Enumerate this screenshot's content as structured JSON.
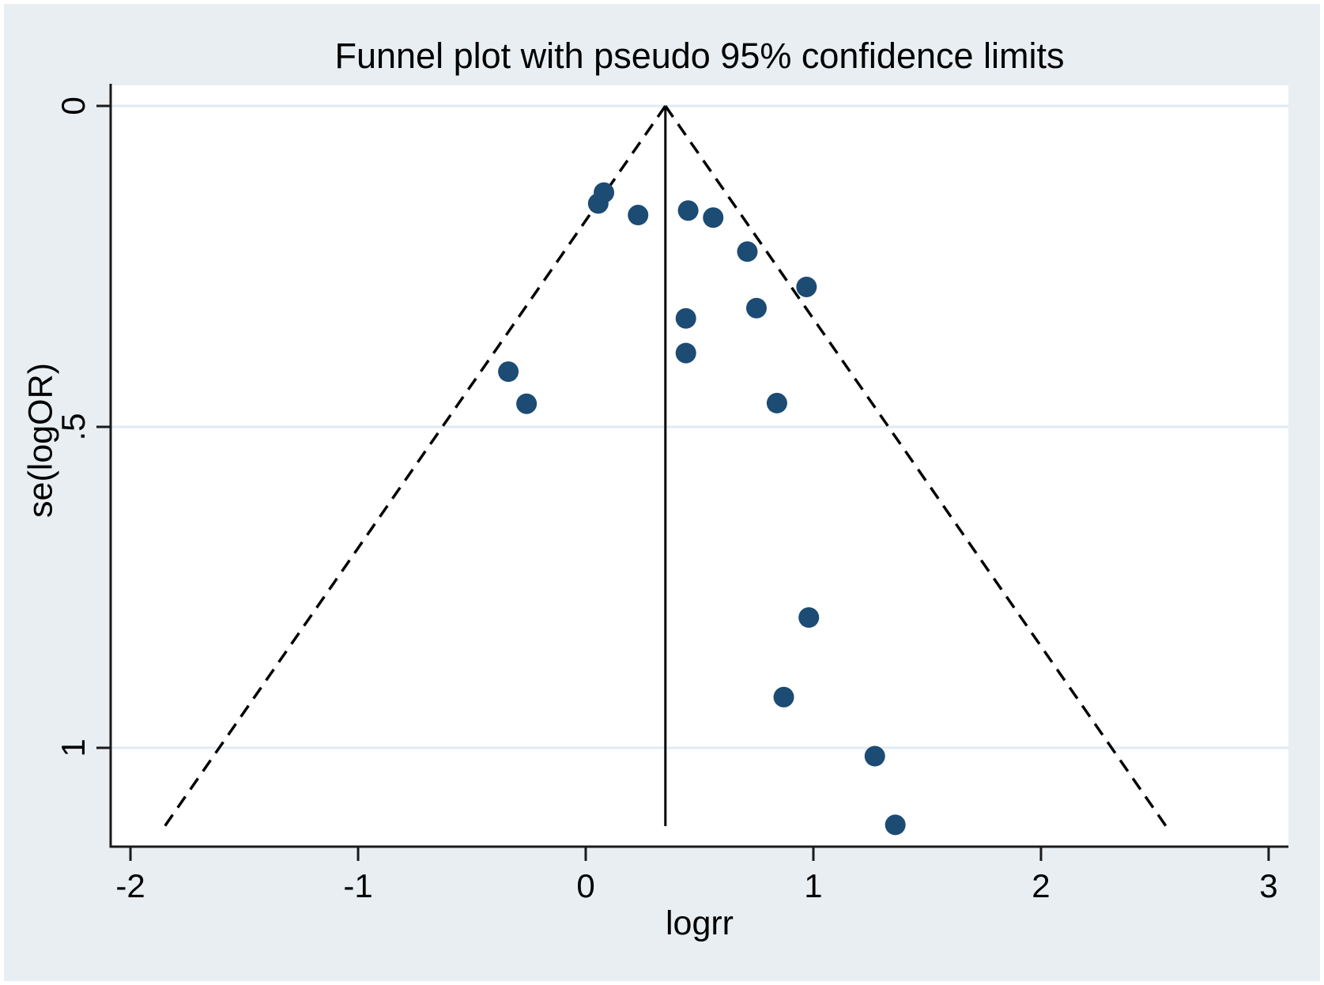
{
  "chart_data": {
    "type": "scatter",
    "subtype": "meta-analysis-funnel-plot",
    "title": "Funnel plot with pseudo 95% confidence limits",
    "xlabel": "logrr",
    "ylabel": "se(logOR)",
    "xlim": [
      -2.087,
      3.087
    ],
    "ylim": [
      -0.032,
      1.154
    ],
    "y_axis_reversed": true,
    "grid": "horizontal-at-y-ticks",
    "legend_position": "none",
    "x_ticks": [
      -2,
      -1,
      0,
      1,
      2,
      3
    ],
    "x_tick_labels": [
      "-2",
      "-1",
      "0",
      "1",
      "2",
      "3"
    ],
    "y_ticks": [
      0,
      0.5,
      1
    ],
    "y_tick_labels": [
      "0",
      ".5",
      "1"
    ],
    "estimate_line_x": 0.35,
    "pseudo_ci_multiplier": 1.96,
    "funnel_se_range": [
      0,
      1.122
    ],
    "points": [
      {
        "logrr": 0.08,
        "se": 0.135
      },
      {
        "logrr": 0.055,
        "se": 0.152
      },
      {
        "logrr": 0.23,
        "se": 0.17
      },
      {
        "logrr": 0.45,
        "se": 0.163
      },
      {
        "logrr": 0.56,
        "se": 0.174
      },
      {
        "logrr": 0.71,
        "se": 0.227
      },
      {
        "logrr": 0.97,
        "se": 0.282
      },
      {
        "logrr": 0.75,
        "se": 0.315
      },
      {
        "logrr": 0.44,
        "se": 0.331
      },
      {
        "logrr": 0.44,
        "se": 0.385
      },
      {
        "logrr": -0.34,
        "se": 0.414
      },
      {
        "logrr": -0.26,
        "se": 0.464
      },
      {
        "logrr": 0.84,
        "se": 0.463
      },
      {
        "logrr": 0.98,
        "se": 0.797
      },
      {
        "logrr": 0.87,
        "se": 0.921
      },
      {
        "logrr": 1.27,
        "se": 1.013
      },
      {
        "logrr": 1.36,
        "se": 1.12
      }
    ],
    "colors": {
      "background": "#e8eef2",
      "plot_background": "#ffffff",
      "gridline": "#dfebf4",
      "axis": "#1a1a1a",
      "funnel_line": "#000000",
      "estimate_line": "#000000",
      "marker": "#1c4b73"
    }
  }
}
